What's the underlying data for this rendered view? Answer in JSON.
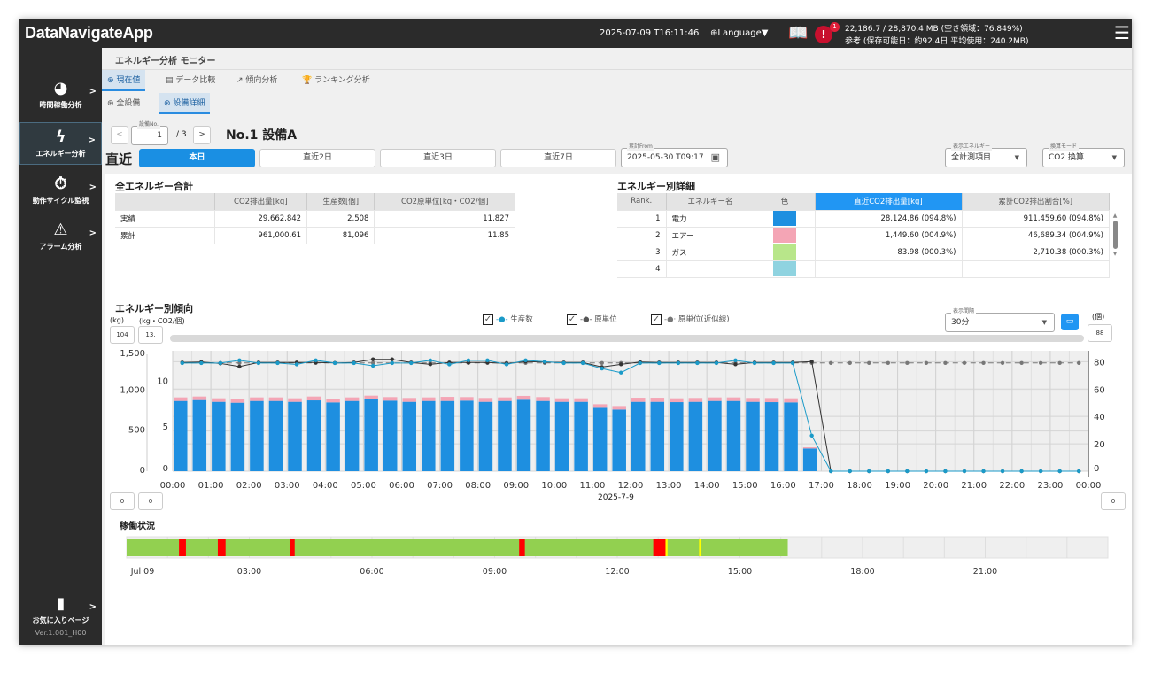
{
  "app": {
    "title": "DataNavigateApp",
    "datetime": "2025-07-09 T16:11:46",
    "language_label": "Language▼",
    "alert_count": "1",
    "storage_line1": "22,186.7 / 28,870.4 MB (空き領域：76.849%)",
    "storage_line2": "参考 (保存可能日：約92.4日 平均使用：240.2MB)"
  },
  "sidebar": {
    "items": [
      {
        "label": "時間稼働分析",
        "icon": "pie-chart-icon"
      },
      {
        "label": "エネルギー分析",
        "icon": "energy-leaf-icon",
        "active": true
      },
      {
        "label": "動作サイクル監視",
        "icon": "stopwatch-icon"
      },
      {
        "label": "アラーム分析",
        "icon": "warning-icon"
      }
    ],
    "favorites_label": "お気に入りページ",
    "version": "Ver.1.001_H00"
  },
  "page": {
    "title": "エネルギー分析 モニター",
    "tabs": [
      {
        "label": "現在値",
        "active": true
      },
      {
        "label": "データ比較"
      },
      {
        "label": "傾向分析"
      },
      {
        "label": "ランキング分析"
      }
    ],
    "subtabs": [
      {
        "label": "全設備"
      },
      {
        "label": "設備詳細",
        "active": true
      }
    ]
  },
  "equipment": {
    "no_label": "設備No.",
    "no_value": "1",
    "total": "/ 3",
    "name": "No.1 設備A"
  },
  "period": {
    "label": "直近",
    "buttons": [
      "本日",
      "直近2日",
      "直近3日",
      "直近7日"
    ],
    "active": "本日",
    "from_label": "累計From",
    "from_value": "2025-05-30 T09:17",
    "energy_label": "表示エネルギー",
    "energy_value": "全計測項目",
    "mode_label": "換算モード",
    "mode_value": "CO2 換算"
  },
  "total": {
    "title": "全エネルギー合計",
    "headers": [
      "",
      "CO2排出量[kg]",
      "生産数[個]",
      "CO2原単位[kg・CO2/個]"
    ],
    "rows": [
      [
        "実績",
        "29,662.842",
        "2,508",
        "11.827"
      ],
      [
        "累計",
        "961,000.61",
        "81,096",
        "11.85"
      ]
    ]
  },
  "detail": {
    "title": "エネルギー別詳細",
    "headers": [
      "Rank.",
      "エネルギー名",
      "色",
      "直近CO2排出量[kg]",
      "累計CO2排出割合[%]"
    ],
    "rows": [
      [
        "1",
        "電力",
        "#1e8fe0",
        "28,124.86  (094.8%)",
        "911,459.60  (094.8%)"
      ],
      [
        "2",
        "エアー",
        "#f4a5b5",
        "1,449.60  (004.9%)",
        "46,689.34  (004.9%)"
      ],
      [
        "3",
        "ガス",
        "#b8e68a",
        "83.98  (000.3%)",
        "2,710.38  (000.3%)"
      ],
      [
        "4",
        "",
        "#8fd3e0",
        "",
        ""
      ]
    ]
  },
  "trend": {
    "title": "エネルギー別傾向",
    "unit_left": "(kg)",
    "unit_mid": "(kg・CO2/個)",
    "unit_right": "(個)",
    "max_left_box": "104",
    "max_mid_box": "13.",
    "max_right_box": "88",
    "min_left_box": "0",
    "min_mid_box": "0",
    "min_right_box": "0",
    "legend": [
      {
        "label": "生産数",
        "checked": true
      },
      {
        "label": "原単位",
        "checked": true
      },
      {
        "label": "原単位(近似線)",
        "checked": true
      }
    ],
    "interval_label": "表示間隔",
    "interval_value": "30分",
    "x_label": "2025-7-9"
  },
  "chart_data": {
    "type": "bar",
    "x_ticks": [
      "00:00",
      "01:00",
      "02:00",
      "03:00",
      "04:00",
      "05:00",
      "06:00",
      "07:00",
      "08:00",
      "09:00",
      "10:00",
      "11:00",
      "12:00",
      "13:00",
      "14:00",
      "15:00",
      "16:00",
      "17:00",
      "18:00",
      "19:00",
      "20:00",
      "21:00",
      "22:00",
      "23:00",
      "00:00"
    ],
    "left_ticks": [
      "0",
      "500",
      "1,000",
      "1,500"
    ],
    "left_range": [
      0,
      1500
    ],
    "mid_ticks": [
      "0",
      "5",
      "10"
    ],
    "mid_range": [
      0,
      13.3
    ],
    "right_ticks": [
      "0",
      "20",
      "40",
      "60",
      "80"
    ],
    "right_range": [
      0,
      88
    ],
    "interval_minutes": 30,
    "bar_series": [
      {
        "name": "電力",
        "color": "#1e8fe0",
        "values": [
          875,
          886,
          864,
          853,
          875,
          875,
          864,
          882,
          857,
          875,
          897,
          879,
          864,
          875,
          875,
          879,
          864,
          875,
          890,
          875,
          864,
          864,
          790,
          768,
          864,
          864,
          860,
          864,
          875,
          875,
          864,
          860,
          857,
          283
        ]
      },
      {
        "name": "エアー",
        "color": "#f4a5b5",
        "values": [
          44,
          44,
          44,
          44,
          44,
          44,
          44,
          48,
          44,
          44,
          44,
          44,
          48,
          44,
          51,
          44,
          48,
          44,
          48,
          48,
          44,
          44,
          44,
          44,
          51,
          51,
          48,
          48,
          44,
          44,
          48,
          51,
          51,
          15
        ]
      }
    ],
    "line_series": [
      {
        "name": "生産数",
        "color": "#1a9ac8",
        "axis": "right",
        "values": [
          79,
          79,
          79,
          81,
          79,
          79,
          78,
          81,
          79,
          79,
          77,
          79,
          79,
          81,
          78,
          81,
          81,
          78,
          81,
          80,
          79,
          79,
          75,
          72,
          79,
          79,
          79,
          79,
          79,
          81,
          79,
          79,
          79,
          26,
          0,
          0,
          0,
          0,
          0,
          0,
          0,
          0,
          0,
          0,
          0,
          0,
          0,
          0
        ]
      },
      {
        "name": "原単位",
        "color": "#333333",
        "axis": "mid",
        "values": [
          12.0,
          12.05,
          11.9,
          11.55,
          12.0,
          12.0,
          12.0,
          12.0,
          11.95,
          12.0,
          12.35,
          12.35,
          12.0,
          11.8,
          12.0,
          12.0,
          12.0,
          11.9,
          12.1,
          12.05,
          12.0,
          12.0,
          11.5,
          11.8,
          12.05,
          12.0,
          12.0,
          12.0,
          12.0,
          11.8,
          12.0,
          12.0,
          12.0,
          12.1,
          0,
          0,
          0,
          0,
          0,
          0,
          0,
          0,
          0,
          0,
          0,
          0,
          0,
          0
        ]
      },
      {
        "name": "原単位(近似線)",
        "color": "#777777",
        "axis": "mid",
        "dashed": true,
        "values": [
          11.95,
          11.95,
          11.95,
          11.95,
          11.95,
          11.95,
          11.95,
          11.95,
          11.95,
          11.95,
          11.95,
          11.95,
          11.95,
          11.95,
          11.95,
          11.95,
          11.95,
          11.95,
          11.95,
          11.95,
          11.95,
          11.95,
          11.95,
          11.95,
          11.95,
          11.95,
          11.95,
          11.95,
          11.95,
          11.95,
          11.95,
          11.95,
          11.95,
          11.95,
          11.95,
          11.95,
          11.95,
          11.95,
          11.95,
          11.95,
          11.95,
          11.95,
          11.95,
          11.95,
          11.95,
          11.95,
          11.95,
          11.95
        ]
      }
    ]
  },
  "operation": {
    "title": "稼働状況",
    "ticks": [
      "Jul 09",
      "03:00",
      "06:00",
      "09:00",
      "12:00",
      "15:00",
      "18:00",
      "21:00"
    ],
    "colors": {
      "run": "#92d050",
      "stop": "#ff0000",
      "warn": "#ffff00",
      "none": "#efefef"
    },
    "segments": [
      {
        "state": "run",
        "from": 0,
        "to": 16.17
      },
      {
        "state": "stop",
        "from": 1.28,
        "to": 1.45
      },
      {
        "state": "stop",
        "from": 2.23,
        "to": 2.42
      },
      {
        "state": "stop",
        "from": 4.0,
        "to": 4.11
      },
      {
        "state": "stop",
        "from": 9.6,
        "to": 9.74
      },
      {
        "state": "stop",
        "from": 12.88,
        "to": 13.18
      },
      {
        "state": "warn",
        "from": 13.18,
        "to": 13.23
      },
      {
        "state": "warn",
        "from": 14.0,
        "to": 14.05
      }
    ]
  }
}
